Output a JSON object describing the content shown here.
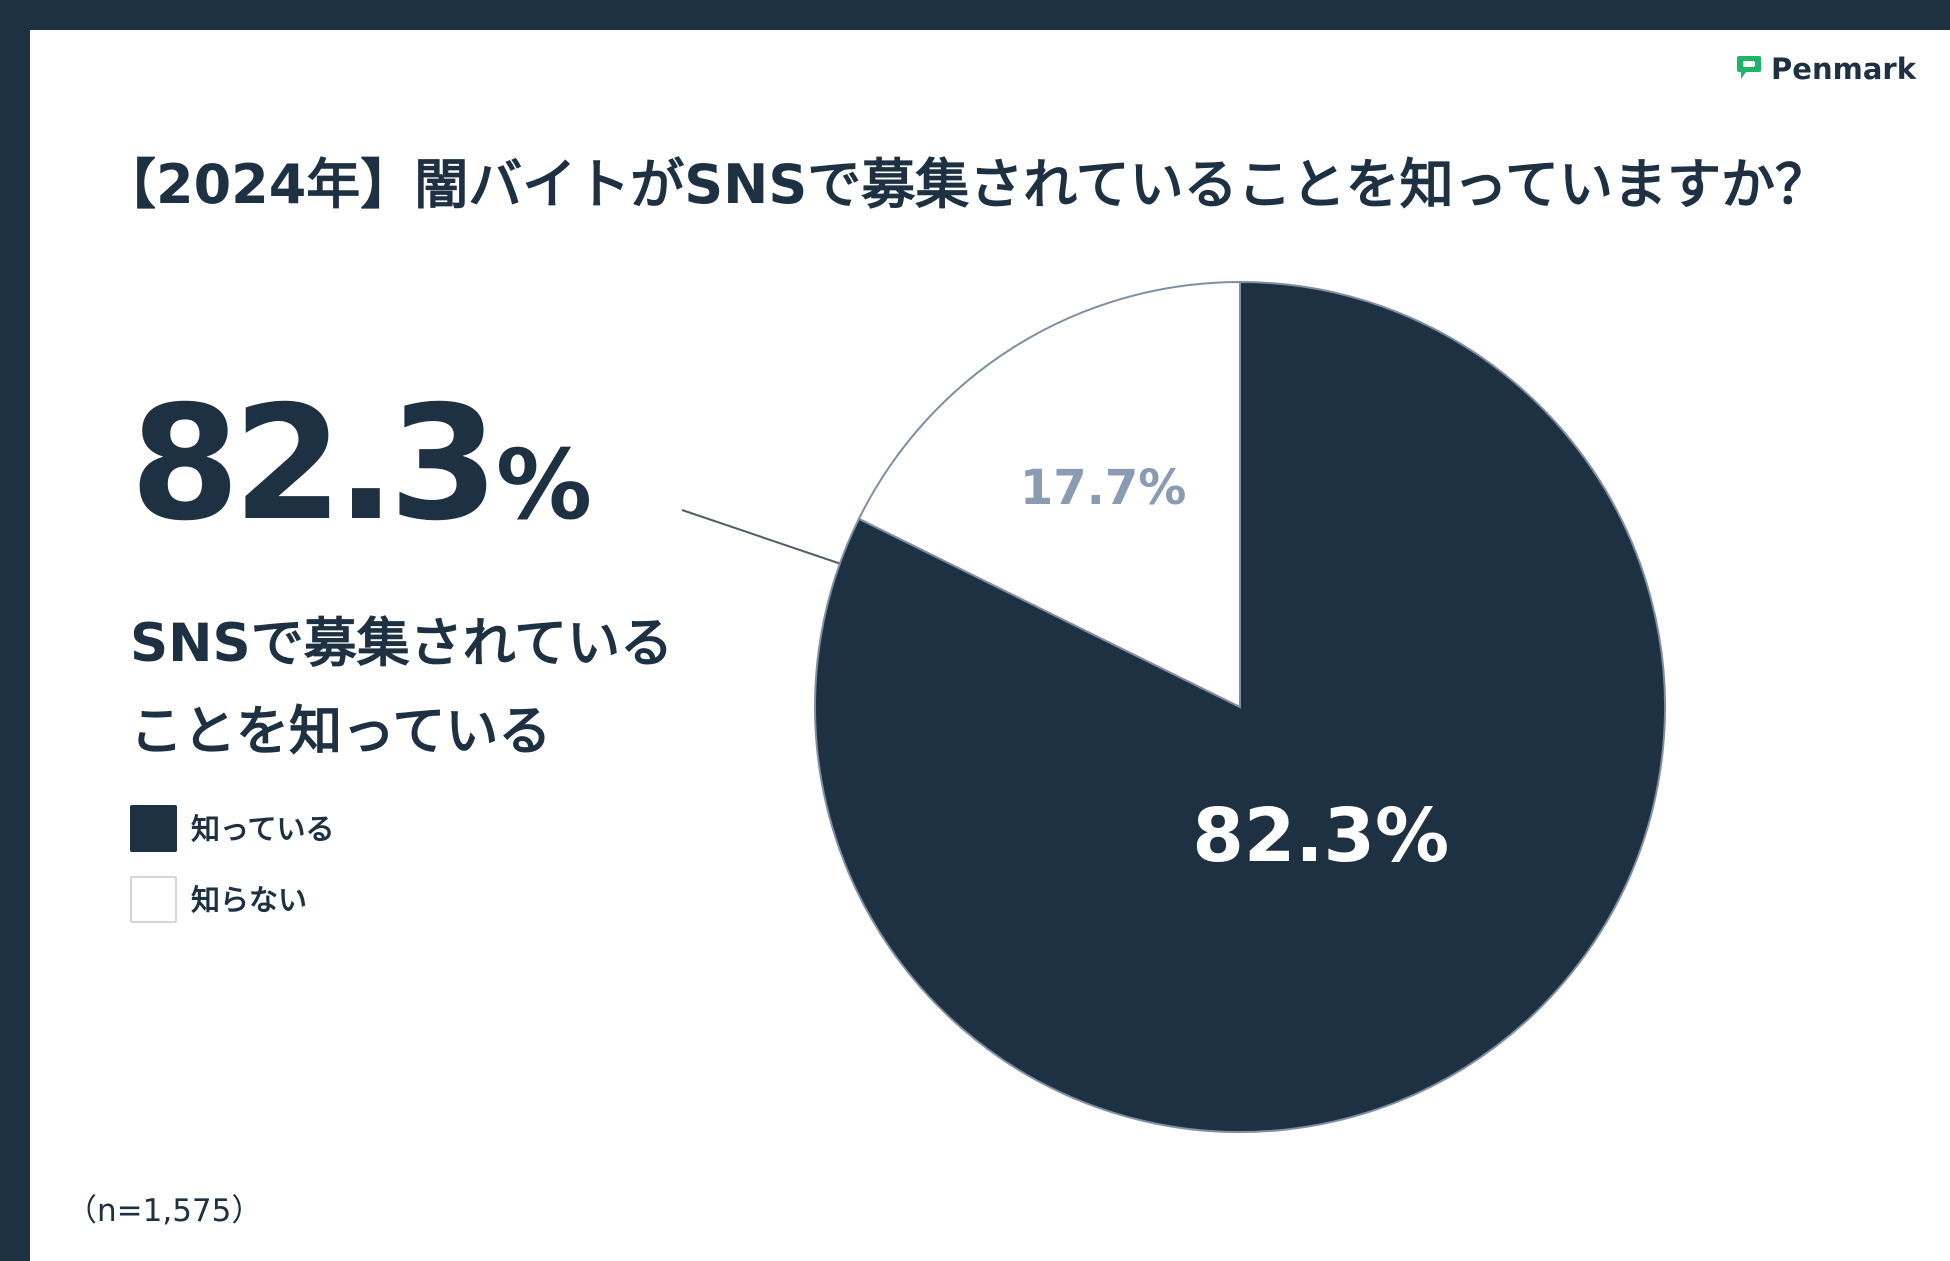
{
  "brand": {
    "name": "Penmark"
  },
  "title": "【2024年】闇バイトがSNSで募集されていることを知っていますか？",
  "highlight": {
    "number": "82.3",
    "symbol": "%",
    "line1": "SNSで募集されている",
    "line2": "ことを知っている"
  },
  "note": "（n=1,575）",
  "colors": {
    "dark": "#1d3142",
    "light": "#ffffff",
    "label_light": "#8a9bb2"
  },
  "chart_data": {
    "type": "pie",
    "categories": [
      "知っている",
      "知らない"
    ],
    "values": [
      82.3,
      17.7
    ],
    "labels": [
      "82.3%",
      "17.7%"
    ],
    "unit": "%",
    "legend_position": "left"
  }
}
